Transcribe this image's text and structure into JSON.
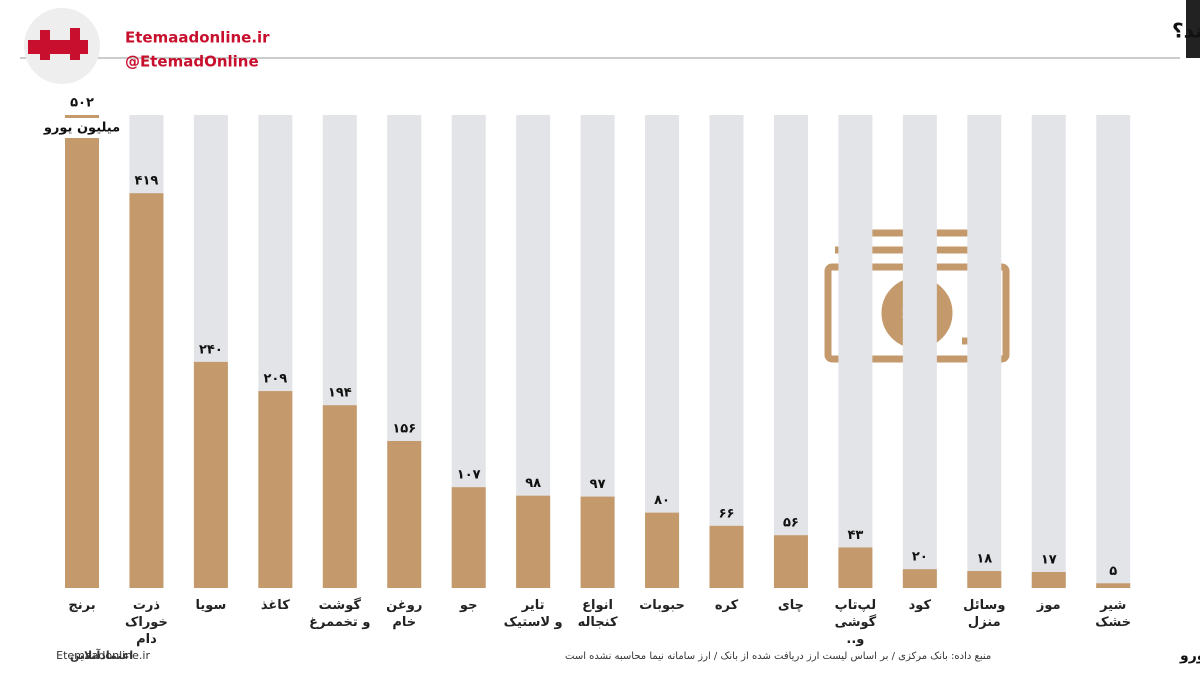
{
  "chart_data": {
    "type": "bar",
    "title": "چه کالاهایی با ارز بانکی وارد کشور شده‌اند؟",
    "brand_site": "Etemaadonline.ir",
    "brand_handle": "@EtemadOnline",
    "unit_label": "میلیون یورو",
    "footnote": "ارقام رند شده‌اند / میلیون یورو",
    "source": "منبع داده: بانک مرکزی / بر اساس لیست ارز دریافت شده از بانک / ارز سامانه نیما محاسبه نشده است",
    "footer_site": "Etemaadonline.ir",
    "footer_brand": "اعتمادآنلاین",
    "categories": [
      "برنج",
      "ذرت\nخوراک دام",
      "سویا",
      "کاغذ",
      "گوشت\nو تخممرغ",
      "روغن\nخام",
      "جو",
      "تایر\nو لاستیک",
      "انواع\nکنجاله",
      "حبوبات",
      "کره",
      "چای",
      "لپ‌تاپ\nگوشی و..",
      "کود",
      "وسائل\nمنزل",
      "موز",
      "شیر\nخشک"
    ],
    "values": [
      502,
      419,
      240,
      209,
      194,
      156,
      107,
      98,
      97,
      80,
      66,
      56,
      43,
      20,
      18,
      17,
      5
    ],
    "value_labels": [
      "۵۰۲",
      "۴۱۹",
      "۲۴۰",
      "۲۰۹",
      "۱۹۴",
      "۱۵۶",
      "۱۰۷",
      "۹۸",
      "۹۷",
      "۸۰",
      "۶۶",
      "۵۶",
      "۴۳",
      "۲۰",
      "۱۸",
      "۱۷",
      "۵"
    ],
    "color": "#c49a6c",
    "ylim": [
      0,
      502
    ]
  }
}
